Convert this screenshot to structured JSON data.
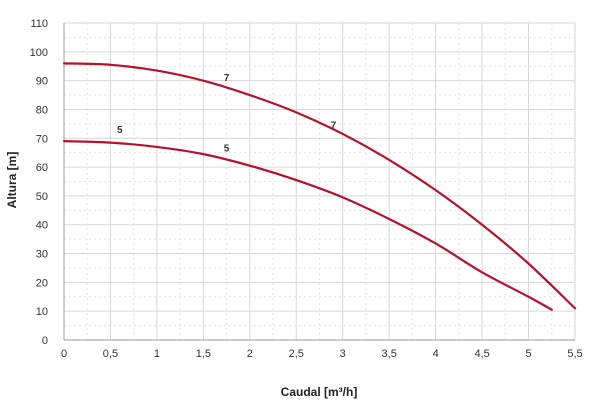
{
  "chart_data": {
    "type": "line",
    "xlabel": "Caudal [m³/h]",
    "ylabel": "Altura [m]",
    "xlim": [
      0,
      5.5
    ],
    "ylim": [
      0,
      110
    ],
    "x_ticks": [
      "0",
      "0,5",
      "1",
      "1,5",
      "2",
      "2,5",
      "3",
      "3,5",
      "4",
      "4,5",
      "5",
      "5,5"
    ],
    "y_ticks": [
      "0",
      "10",
      "20",
      "30",
      "40",
      "50",
      "60",
      "70",
      "80",
      "90",
      "100",
      "110"
    ],
    "grid": true,
    "series_color": "#b5122b",
    "series": [
      {
        "points": [
          [
            0,
            96
          ],
          [
            0.5,
            95.5
          ],
          [
            1,
            93.5
          ],
          [
            1.5,
            90
          ],
          [
            2,
            85
          ],
          [
            2.5,
            79
          ],
          [
            3,
            71.5
          ],
          [
            3.5,
            62.5
          ],
          [
            4,
            52
          ],
          [
            4.5,
            40
          ],
          [
            5,
            26.5
          ],
          [
            5.5,
            11
          ]
        ],
        "labels": [
          {
            "text": "7",
            "x": 1.75,
            "y": 88.5
          },
          {
            "text": "7",
            "x": 2.9,
            "y": 72
          }
        ]
      },
      {
        "points": [
          [
            0,
            69
          ],
          [
            0.5,
            68.5
          ],
          [
            1,
            67
          ],
          [
            1.5,
            64.5
          ],
          [
            2,
            60.5
          ],
          [
            2.5,
            55.5
          ],
          [
            3,
            49.5
          ],
          [
            3.5,
            42
          ],
          [
            4,
            33.5
          ],
          [
            4.5,
            23.5
          ],
          [
            5,
            15
          ],
          [
            5.25,
            10.5
          ]
        ],
        "labels": [
          {
            "text": "5",
            "x": 0.6,
            "y": 70.5
          },
          {
            "text": "5",
            "x": 1.75,
            "y": 64
          }
        ]
      }
    ]
  }
}
